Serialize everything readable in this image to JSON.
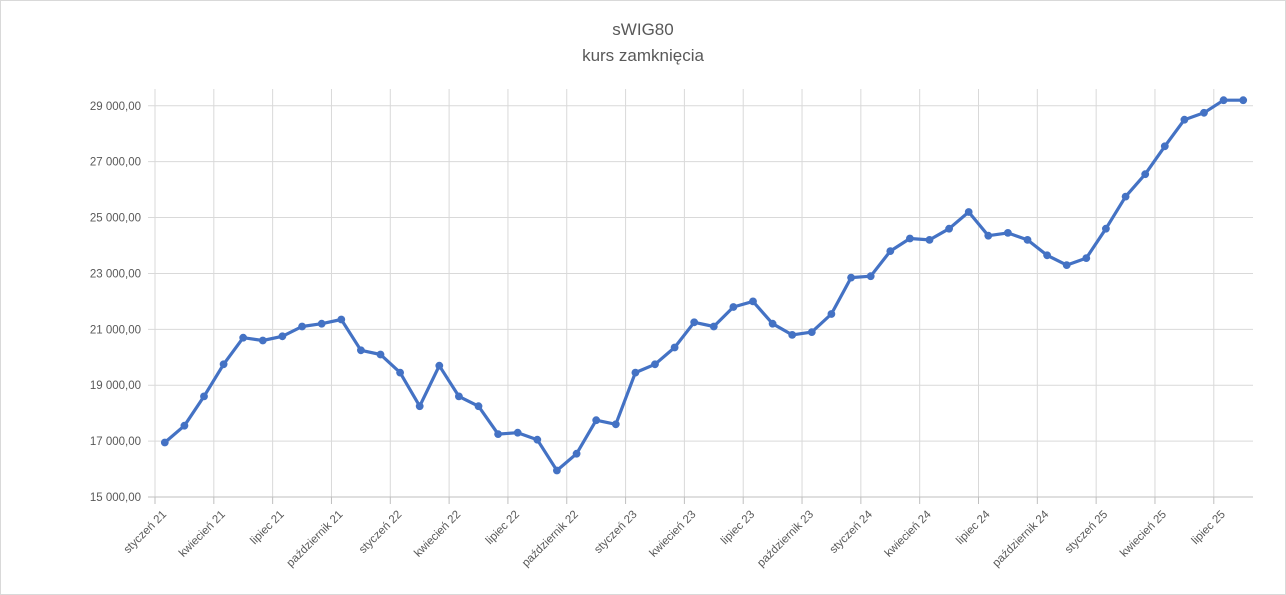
{
  "colors": {
    "accent": "#4472C4",
    "gridline": "#D9D9D9",
    "axis_line": "#BFBFBF",
    "tick_text": "#595959",
    "title_text": "#595959",
    "background": "#FFFFFF",
    "canvas_border": "#D9D9D9"
  },
  "chart_data": {
    "type": "line",
    "title": "sWIG80",
    "subtitle": "kurs zamknięcia",
    "legend": "none",
    "grid": true,
    "marker": "circle",
    "x_tick_interval_months": 3,
    "x_tick_labels": [
      "styczeń 21",
      "kwiecień 21",
      "lipiec 21",
      "październik 21",
      "styczeń 22",
      "kwiecień 22",
      "lipiec 22",
      "październik 22",
      "styczeń 23",
      "kwiecień 23",
      "lipiec 23",
      "październik 23",
      "styczeń 24",
      "kwiecień 24",
      "lipiec 24",
      "październik 24",
      "styczeń 25",
      "kwiecień 25",
      "lipiec 25"
    ],
    "x_months": [
      "styczeń 21",
      "luty 21",
      "marzec 21",
      "kwiecień 21",
      "maj 21",
      "czerwiec 21",
      "lipiec 21",
      "sierpień 21",
      "wrzesień 21",
      "październik 21",
      "listopad 21",
      "grudzień 21",
      "styczeń 22",
      "luty 22",
      "marzec 22",
      "kwiecień 22",
      "maj 22",
      "czerwiec 22",
      "lipiec 22",
      "sierpień 22",
      "wrzesień 22",
      "październik 22",
      "listopad 22",
      "grudzień 22",
      "styczeń 23",
      "luty 23",
      "marzec 23",
      "kwiecień 23",
      "maj 23",
      "czerwiec 23",
      "lipiec 23",
      "sierpień 23",
      "wrzesień 23",
      "październik 23",
      "listopad 23",
      "grudzień 23",
      "styczeń 24",
      "luty 24",
      "marzec 24",
      "kwiecień 24",
      "maj 24",
      "czerwiec 24",
      "lipiec 24",
      "sierpień 24",
      "wrzesień 24",
      "październik 24",
      "listopad 24",
      "grudzień 24",
      "styczeń 25",
      "luty 25",
      "marzec 25",
      "kwiecień 25",
      "maj 25",
      "czerwiec 25",
      "lipiec 25",
      "sierpień 25"
    ],
    "series": [
      {
        "name": "kurs zamknięcia",
        "color": "#4472C4",
        "values": [
          16950,
          17550,
          18600,
          19750,
          20700,
          20600,
          20750,
          21100,
          21200,
          21350,
          20250,
          20100,
          19450,
          18250,
          19700,
          18600,
          18250,
          17250,
          17300,
          17050,
          15950,
          16550,
          17750,
          17600,
          19450,
          19750,
          20350,
          21250,
          21100,
          21800,
          22000,
          21200,
          20800,
          20900,
          21550,
          22850,
          22900,
          23800,
          24250,
          24200,
          24600,
          25200,
          24350,
          24450,
          24200,
          23650,
          23300,
          23550,
          24600,
          25750,
          26550,
          27550,
          28500,
          28750,
          29200,
          29200
        ]
      }
    ],
    "ylim": [
      15000,
      29600
    ],
    "y_ticks": [
      15000,
      17000,
      19000,
      21000,
      23000,
      25000,
      27000,
      29000
    ],
    "y_tick_labels": [
      "15 000,00",
      "17 000,00",
      "19 000,00",
      "21 000,00",
      "23 000,00",
      "25 000,00",
      "27 000,00",
      "29 000,00"
    ]
  }
}
